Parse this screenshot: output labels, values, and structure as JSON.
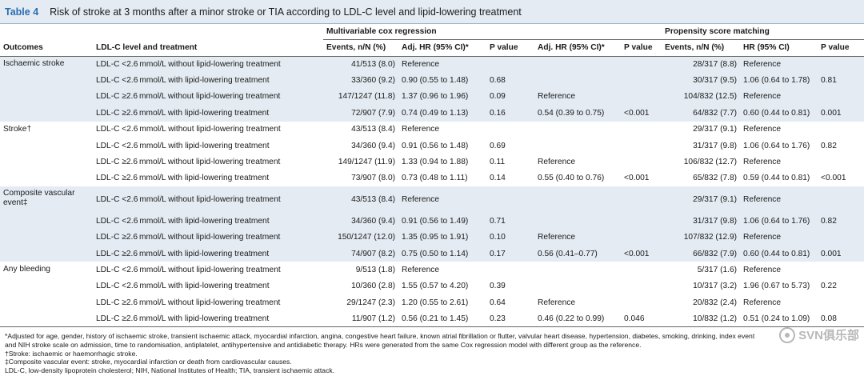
{
  "header": {
    "label": "Table 4",
    "title": "Risk of stroke at 3 months after a minor stroke or TIA according to LDL-C level and lipid-lowering treatment"
  },
  "groups": {
    "multivariable": "Multivariable cox regression",
    "propensity": "Propensity score matching"
  },
  "columns": {
    "outcomes": "Outcomes",
    "ldl": "LDL-C level and treatment",
    "events1": "Events, n/N (%)",
    "adjhr1": "Adj. HR (95% CI)*",
    "p1": "P value",
    "adjhr2": "Adj. HR (95% CI)*",
    "p2": "P value",
    "events2": "Events, n/N (%)",
    "hr3": "HR (95% CI)",
    "p3": "P value"
  },
  "rows": [
    {
      "outcome": "Ischaemic stroke",
      "ldl": "LDL-C <2.6 mmol/L without lipid-lowering treatment",
      "events1": "41/513 (8.0)",
      "adjhr1": "Reference",
      "p1": "",
      "adjhr2": "",
      "p2": "",
      "events2": "28/317 (8.8)",
      "hr3": "Reference",
      "p3": ""
    },
    {
      "outcome": "",
      "ldl": "LDL-C <2.6 mmol/L with lipid-lowering treatment",
      "events1": "33/360 (9.2)",
      "adjhr1": "0.90 (0.55 to 1.48)",
      "p1": "0.68",
      "adjhr2": "",
      "p2": "",
      "events2": "30/317 (9.5)",
      "hr3": "1.06 (0.64 to 1.78)",
      "p3": "0.81"
    },
    {
      "outcome": "",
      "ldl": "LDL-C ≥2.6 mmol/L without lipid-lowering treatment",
      "events1": "147/1247 (11.8)",
      "adjhr1": "1.37 (0.96 to 1.96)",
      "p1": "0.09",
      "adjhr2": "Reference",
      "p2": "",
      "events2": "104/832 (12.5)",
      "hr3": "Reference",
      "p3": ""
    },
    {
      "outcome": "",
      "ldl": "LDL-C ≥2.6 mmol/L with lipid-lowering treatment",
      "events1": "72/907 (7.9)",
      "adjhr1": "0.74 (0.49 to 1.13)",
      "p1": "0.16",
      "adjhr2": "0.54 (0.39 to 0.75)",
      "p2": "<0.001",
      "events2": "64/832 (7.7)",
      "hr3": "0.60 (0.44 to 0.81)",
      "p3": "0.001"
    },
    {
      "outcome": "Stroke†",
      "ldl": "LDL-C <2.6 mmol/L without lipid-lowering treatment",
      "events1": "43/513 (8.4)",
      "adjhr1": "Reference",
      "p1": "",
      "adjhr2": "",
      "p2": "",
      "events2": "29/317 (9.1)",
      "hr3": "Reference",
      "p3": ""
    },
    {
      "outcome": "",
      "ldl": "LDL-C <2.6 mmol/L with lipid-lowering treatment",
      "events1": "34/360 (9.4)",
      "adjhr1": "0.91 (0.56 to 1.48)",
      "p1": "0.69",
      "adjhr2": "",
      "p2": "",
      "events2": "31/317 (9.8)",
      "hr3": "1.06 (0.64 to 1.76)",
      "p3": "0.82"
    },
    {
      "outcome": "",
      "ldl": "LDL-C ≥2.6 mmol/L without lipid-lowering treatment",
      "events1": "149/1247 (11.9)",
      "adjhr1": "1.33 (0.94 to 1.88)",
      "p1": "0.11",
      "adjhr2": "Reference",
      "p2": "",
      "events2": "106/832 (12.7)",
      "hr3": "Reference",
      "p3": ""
    },
    {
      "outcome": "",
      "ldl": "LDL-C ≥2.6 mmol/L with lipid-lowering treatment",
      "events1": "73/907 (8.0)",
      "adjhr1": "0.73 (0.48 to 1.11)",
      "p1": "0.14",
      "adjhr2": "0.55 (0.40 to 0.76)",
      "p2": "<0.001",
      "events2": "65/832 (7.8)",
      "hr3": "0.59 (0.44 to 0.81)",
      "p3": "<0.001"
    },
    {
      "outcome": "Composite vascular event‡",
      "ldl": "LDL-C <2.6 mmol/L without lipid-lowering treatment",
      "events1": "43/513 (8.4)",
      "adjhr1": "Reference",
      "p1": "",
      "adjhr2": "",
      "p2": "",
      "events2": "29/317 (9.1)",
      "hr3": "Reference",
      "p3": "",
      "tall": true
    },
    {
      "outcome": "",
      "ldl": "LDL-C <2.6 mmol/L with lipid-lowering treatment",
      "events1": "34/360 (9.4)",
      "adjhr1": "0.91 (0.56 to 1.49)",
      "p1": "0.71",
      "adjhr2": "",
      "p2": "",
      "events2": "31/317 (9.8)",
      "hr3": "1.06 (0.64 to 1.76)",
      "p3": "0.82"
    },
    {
      "outcome": "",
      "ldl": "LDL-C ≥2.6 mmol/L without lipid-lowering treatment",
      "events1": "150/1247 (12.0)",
      "adjhr1": "1.35 (0.95 to 1.91)",
      "p1": "0.10",
      "adjhr2": "Reference",
      "p2": "",
      "events2": "107/832 (12.9)",
      "hr3": "Reference",
      "p3": ""
    },
    {
      "outcome": "",
      "ldl": "LDL-C ≥2.6 mmol/L with lipid-lowering treatment",
      "events1": "74/907 (8.2)",
      "adjhr1": "0.75 (0.50 to 1.14)",
      "p1": "0.17",
      "adjhr2": "0.56 (0.41–0.77)",
      "p2": "<0.001",
      "events2": "66/832 (7.9)",
      "hr3": "0.60 (0.44 to 0.81)",
      "p3": "0.001"
    },
    {
      "outcome": "Any bleeding",
      "ldl": "LDL-C <2.6 mmol/L without lipid-lowering treatment",
      "events1": "9/513 (1.8)",
      "adjhr1": "Reference",
      "p1": "",
      "adjhr2": "",
      "p2": "",
      "events2": "5/317 (1.6)",
      "hr3": "Reference",
      "p3": ""
    },
    {
      "outcome": "",
      "ldl": "LDL-C <2.6 mmol/L with lipid-lowering treatment",
      "events1": "10/360 (2.8)",
      "adjhr1": "1.55 (0.57 to 4.20)",
      "p1": "0.39",
      "adjhr2": "",
      "p2": "",
      "events2": "10/317 (3.2)",
      "hr3": "1.96 (0.67 to 5.73)",
      "p3": "0.22"
    },
    {
      "outcome": "",
      "ldl": "LDL-C ≥2.6 mmol/L without lipid-lowering treatment",
      "events1": "29/1247 (2.3)",
      "adjhr1": "1.20 (0.55 to 2.61)",
      "p1": "0.64",
      "adjhr2": "Reference",
      "p2": "",
      "events2": "20/832 (2.4)",
      "hr3": "Reference",
      "p3": ""
    },
    {
      "outcome": "",
      "ldl": "LDL-C ≥2.6 mmol/L with lipid-lowering treatment",
      "events1": "11/907 (1.2)",
      "adjhr1": "0.56 (0.21 to 1.45)",
      "p1": "0.23",
      "adjhr2": "0.46 (0.22 to 0.99)",
      "p2": "0.046",
      "events2": "10/832 (1.2)",
      "hr3": "0.51 (0.24 to 1.09)",
      "p3": "0.08"
    }
  ],
  "footnotes": [
    "*Adjusted for age, gender, history of ischaemic stroke, transient ischaemic attack, myocardial infarction, angina, congestive heart failure, known atrial fibrillation or flutter, valvular heart disease, hypertension, diabetes, smoking, drinking, index event",
    "and NIH stroke scale on admission, time to randomisation, antiplatelet, antihypertensive and antidiabetic therapy. HRs were generated from the same Cox regression model with different group as the reference.",
    "†Stroke: ischaemic or haemorrhagic stroke.",
    "‡Composite vascular event: stroke, myocardial infarction or death from cardiovascular causes.",
    "LDL-C, low-density lipoprotein cholesterol; NIH, National Institutes of Health; TIA, transient ischaemic attack."
  ],
  "watermark": "SVN俱乐部"
}
